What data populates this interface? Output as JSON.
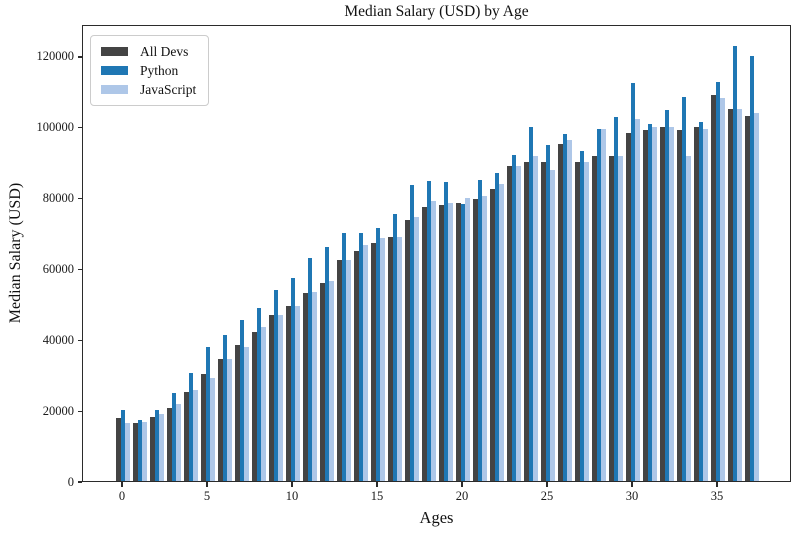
{
  "chart_data": {
    "type": "bar",
    "title": "Median Salary (USD) by Age",
    "xlabel": "Ages",
    "ylabel": "Median Salary (USD)",
    "x": [
      0,
      1,
      2,
      3,
      4,
      5,
      6,
      7,
      8,
      9,
      10,
      11,
      12,
      13,
      14,
      15,
      16,
      17,
      18,
      19,
      20,
      21,
      22,
      23,
      24,
      25,
      26,
      27,
      28,
      29,
      30,
      31,
      32,
      33,
      34,
      35,
      36,
      37
    ],
    "x_ticks": [
      0,
      5,
      10,
      15,
      20,
      25,
      30,
      35
    ],
    "y_ticks": [
      0,
      20000,
      40000,
      60000,
      80000,
      100000,
      120000
    ],
    "ylim": [
      0,
      129013
    ],
    "grid": false,
    "legend_position": "upper left",
    "axis_color": "#2b2b2b",
    "series": [
      {
        "name": "All Devs",
        "color": "#444444",
        "values": [
          17784,
          16500,
          18012,
          20628,
          25206,
          30252,
          34368,
          38496,
          42000,
          46752,
          49320,
          53200,
          56000,
          62316,
          64928,
          67317,
          68748,
          73752,
          77232,
          78000,
          78508,
          79536,
          82488,
          88935,
          90000,
          90056,
          95000,
          90000,
          91633,
          91660,
          98150,
          98964,
          100000,
          98988,
          100000,
          108923,
          105000,
          103117
        ]
      },
      {
        "name": "Python",
        "color": "#1f77b4",
        "values": [
          20046,
          17100,
          20000,
          24744,
          30500,
          37732,
          41247,
          45372,
          48876,
          53850,
          57287,
          63016,
          65998,
          70003,
          70000,
          71496,
          75370,
          83640,
          84666,
          84392,
          78254,
          85000,
          87038,
          91991,
          100000,
          94796,
          97962,
          93302,
          99240,
          102736,
          112285,
          100771,
          104708,
          108423,
          101407,
          112542,
          122870,
          120000
        ]
      },
      {
        "name": "JavaScript",
        "color": "#aec7e8",
        "values": [
          16446,
          16791,
          18942,
          21780,
          25704,
          29000,
          34372,
          37810,
          43515,
          46823,
          49293,
          53437,
          56373,
          62375,
          66674,
          68745,
          68746,
          74583,
          79000,
          78508,
          79996,
          80403,
          83820,
          88833,
          91660,
          87892,
          96243,
          90000,
          99313,
          91660,
          102264,
          100000,
          100000,
          91660,
          99240,
          108000,
          105000,
          104000
        ]
      }
    ]
  }
}
